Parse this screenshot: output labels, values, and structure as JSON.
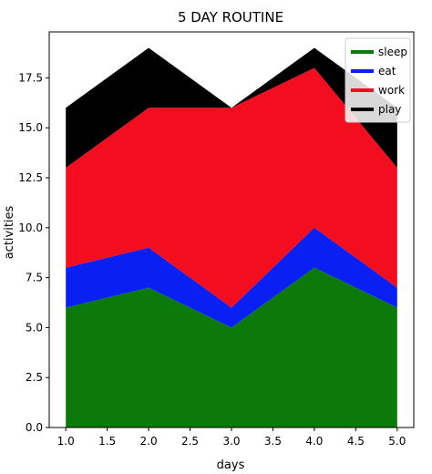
{
  "chart_data": {
    "type": "area",
    "stacked": true,
    "title": "5 DAY ROUTINE",
    "xlabel": "days",
    "ylabel": "activities",
    "x": [
      1,
      2,
      3,
      4,
      5
    ],
    "xlim": [
      0.8,
      5.2
    ],
    "ylim": [
      0,
      19.8
    ],
    "xticks": [
      1.0,
      1.5,
      2.0,
      2.5,
      3.0,
      3.5,
      4.0,
      4.5,
      5.0
    ],
    "xtick_labels": [
      "1.0",
      "1.5",
      "2.0",
      "2.5",
      "3.0",
      "3.5",
      "4.0",
      "4.5",
      "5.0"
    ],
    "yticks": [
      0,
      2.5,
      5,
      7.5,
      10,
      12.5,
      15,
      17.5
    ],
    "ytick_labels": [
      "0.0",
      "2.5",
      "5.0",
      "7.5",
      "10.0",
      "12.5",
      "15.0",
      "17.5"
    ],
    "grid": false,
    "legend_position": "top-right",
    "series": [
      {
        "name": "sleep",
        "values": [
          6,
          7,
          5,
          8,
          6
        ],
        "color": "#0b7a0b"
      },
      {
        "name": "eat",
        "values": [
          2,
          2,
          1,
          2,
          1
        ],
        "color": "#0a1ff2"
      },
      {
        "name": "work",
        "values": [
          5,
          7,
          10,
          8,
          6
        ],
        "color": "#f20d1f"
      },
      {
        "name": "play",
        "values": [
          3,
          3,
          0,
          1,
          3
        ],
        "color": "#000000"
      }
    ]
  }
}
